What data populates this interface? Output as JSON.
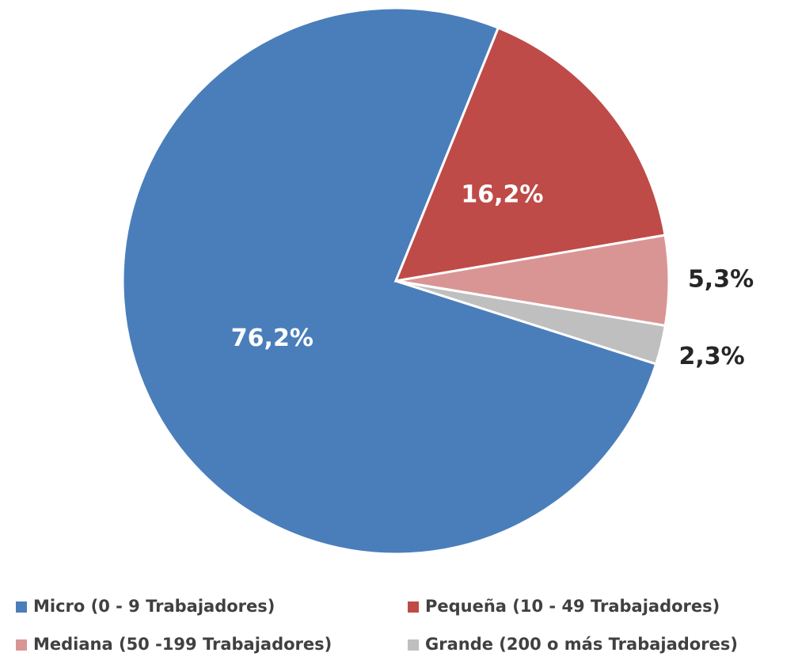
{
  "chart_data": {
    "type": "pie",
    "categories": [
      "Micro (0 - 9 Trabajadores)",
      "Pequeña (10 - 49 Trabajadores)",
      "Mediana (50 -199 Trabajadores)",
      "Grande (200 o más Trabajadores)"
    ],
    "values": [
      76.2,
      16.2,
      5.3,
      2.3
    ],
    "value_labels": [
      "76,2%",
      "16,2%",
      "5,3%",
      "2,3%"
    ],
    "colors": [
      "#4a7ebb",
      "#be4b48",
      "#d99594",
      "#bfbfbf"
    ],
    "legend": "bottom"
  }
}
